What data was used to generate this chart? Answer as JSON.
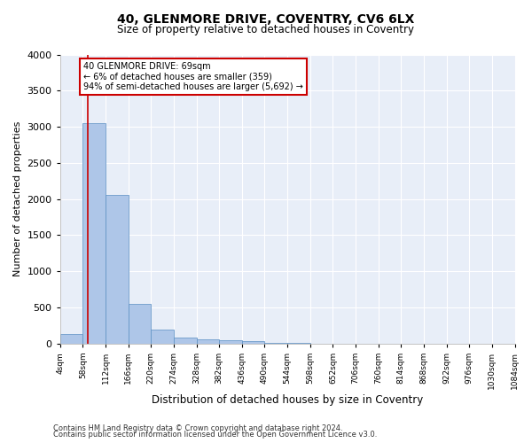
{
  "title": "40, GLENMORE DRIVE, COVENTRY, CV6 6LX",
  "subtitle": "Size of property relative to detached houses in Coventry",
  "xlabel": "Distribution of detached houses by size in Coventry",
  "ylabel": "Number of detached properties",
  "bin_edges": [
    4,
    58,
    112,
    166,
    220,
    274,
    328,
    382,
    436,
    490,
    544,
    598,
    652,
    706,
    760,
    814,
    868,
    922,
    976,
    1030,
    1084
  ],
  "bar_heights": [
    130,
    3050,
    2060,
    550,
    195,
    80,
    55,
    45,
    35,
    10,
    5,
    3,
    2,
    1,
    1,
    1,
    1,
    0,
    0,
    0
  ],
  "bar_color": "#aec6e8",
  "bar_edge_color": "#5a8fc3",
  "property_size": 69,
  "red_line_color": "#cc0000",
  "annotation_text": "40 GLENMORE DRIVE: 69sqm\n← 6% of detached houses are smaller (359)\n94% of semi-detached houses are larger (5,692) →",
  "annotation_box_color": "#cc0000",
  "annotation_text_color": "#000000",
  "ylim": [
    0,
    4000
  ],
  "yticks": [
    0,
    500,
    1000,
    1500,
    2000,
    2500,
    3000,
    3500,
    4000
  ],
  "background_color": "#e8eef8",
  "grid_color": "#ffffff",
  "footer_line1": "Contains HM Land Registry data © Crown copyright and database right 2024.",
  "footer_line2": "Contains public sector information licensed under the Open Government Licence v3.0."
}
